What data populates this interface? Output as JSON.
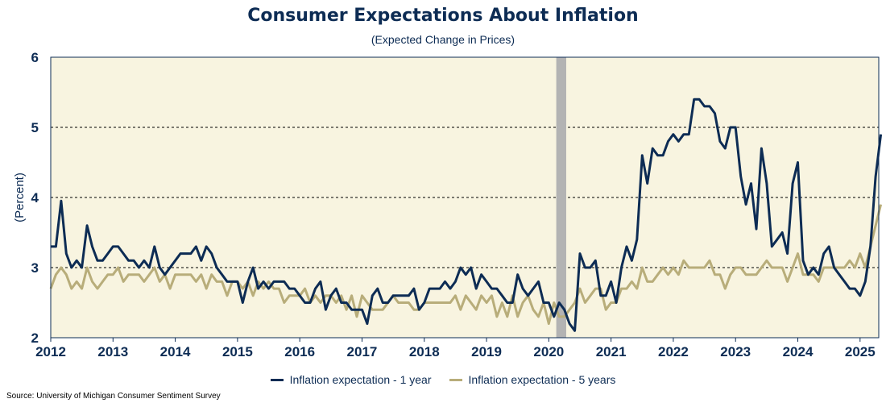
{
  "colors": {
    "plot_bg": "#f8f4e0",
    "series_1yr": "#0d2c54",
    "series_5yr": "#b8ad7a",
    "recession": "#b3b3b3",
    "text": "#0d2c54"
  },
  "chart_data": {
    "type": "line",
    "title": "Consumer Expectations About Inflation",
    "subtitle": "(Expected Change in Prices)",
    "ylabel": "(Percent)",
    "xlabel": "",
    "ylim": [
      2,
      6
    ],
    "yticks": [
      2,
      3,
      4,
      5,
      6
    ],
    "xlim": [
      2012.0,
      2025.3
    ],
    "xticks": [
      2012,
      2013,
      2014,
      2015,
      2016,
      2017,
      2018,
      2019,
      2020,
      2021,
      2022,
      2023,
      2024,
      2025
    ],
    "gridlines": "horizontal dashed at 3, 4, 5",
    "legend_position": "bottom",
    "recession_shading": {
      "start": 2020.12,
      "end": 2020.28
    },
    "start": "2012-01",
    "frequency": "monthly",
    "series": [
      {
        "name": "Inflation expectation - 1 year",
        "values": [
          3.3,
          3.3,
          3.95,
          3.2,
          3.0,
          3.1,
          3.0,
          3.6,
          3.3,
          3.1,
          3.1,
          3.2,
          3.3,
          3.3,
          3.2,
          3.1,
          3.1,
          3.0,
          3.1,
          3.0,
          3.3,
          3.0,
          2.9,
          3.0,
          3.1,
          3.2,
          3.2,
          3.2,
          3.3,
          3.1,
          3.3,
          3.2,
          3.0,
          2.9,
          2.8,
          2.8,
          2.8,
          2.5,
          2.8,
          3.0,
          2.7,
          2.8,
          2.7,
          2.8,
          2.8,
          2.8,
          2.7,
          2.7,
          2.6,
          2.5,
          2.5,
          2.7,
          2.8,
          2.4,
          2.6,
          2.7,
          2.5,
          2.5,
          2.4,
          2.4,
          2.4,
          2.2,
          2.6,
          2.7,
          2.5,
          2.5,
          2.6,
          2.6,
          2.6,
          2.6,
          2.7,
          2.4,
          2.5,
          2.7,
          2.7,
          2.7,
          2.8,
          2.7,
          2.8,
          3.0,
          2.9,
          3.0,
          2.7,
          2.9,
          2.8,
          2.7,
          2.7,
          2.6,
          2.5,
          2.5,
          2.9,
          2.7,
          2.6,
          2.7,
          2.8,
          2.5,
          2.5,
          2.3,
          2.5,
          2.4,
          2.2,
          2.1,
          3.2,
          3.0,
          3.0,
          3.1,
          2.6,
          2.6,
          2.8,
          2.5,
          3.0,
          3.3,
          3.1,
          3.4,
          4.6,
          4.2,
          4.7,
          4.6,
          4.6,
          4.8,
          4.9,
          4.8,
          4.9,
          4.9,
          5.4,
          5.4,
          5.3,
          5.3,
          5.2,
          4.8,
          4.7,
          5.0,
          5.0,
          4.3,
          3.9,
          4.2,
          3.55,
          4.7,
          4.2,
          3.3,
          3.4,
          3.5,
          3.2,
          4.2,
          4.5,
          3.1,
          2.9,
          3.0,
          2.9,
          3.2,
          3.3,
          3.0,
          2.9,
          2.8,
          2.7,
          2.7,
          2.6,
          2.8,
          3.3,
          4.3,
          4.9
        ]
      },
      {
        "name": "Inflation expectation - 5 years",
        "values": [
          2.7,
          2.9,
          3.0,
          2.9,
          2.7,
          2.8,
          2.7,
          3.0,
          2.8,
          2.7,
          2.8,
          2.9,
          2.9,
          3.0,
          2.8,
          2.9,
          2.9,
          2.9,
          2.8,
          2.9,
          3.0,
          2.8,
          2.9,
          2.7,
          2.9,
          2.9,
          2.9,
          2.9,
          2.8,
          2.9,
          2.7,
          2.9,
          2.8,
          2.8,
          2.6,
          2.8,
          2.8,
          2.7,
          2.8,
          2.6,
          2.8,
          2.7,
          2.8,
          2.7,
          2.7,
          2.5,
          2.6,
          2.6,
          2.6,
          2.7,
          2.5,
          2.6,
          2.5,
          2.6,
          2.6,
          2.5,
          2.6,
          2.4,
          2.6,
          2.3,
          2.6,
          2.5,
          2.4,
          2.4,
          2.4,
          2.5,
          2.6,
          2.5,
          2.5,
          2.5,
          2.4,
          2.4,
          2.5,
          2.5,
          2.5,
          2.5,
          2.5,
          2.5,
          2.6,
          2.4,
          2.6,
          2.5,
          2.4,
          2.6,
          2.5,
          2.6,
          2.3,
          2.5,
          2.3,
          2.6,
          2.3,
          2.5,
          2.6,
          2.4,
          2.3,
          2.5,
          2.2,
          2.5,
          2.3,
          2.3,
          2.4,
          2.5,
          2.7,
          2.5,
          2.6,
          2.7,
          2.7,
          2.4,
          2.5,
          2.5,
          2.7,
          2.7,
          2.8,
          2.7,
          3.0,
          2.8,
          2.8,
          2.9,
          3.0,
          2.9,
          3.0,
          2.9,
          3.1,
          3.0,
          3.0,
          3.0,
          3.0,
          3.1,
          2.9,
          2.9,
          2.7,
          2.9,
          3.0,
          3.0,
          2.9,
          2.9,
          2.9,
          3.0,
          3.1,
          3.0,
          3.0,
          3.0,
          2.8,
          3.0,
          3.2,
          2.9,
          2.9,
          2.9,
          2.8,
          3.0,
          3.0,
          3.0,
          3.0,
          3.0,
          3.1,
          3.0,
          3.2,
          3.0,
          3.3,
          3.6,
          3.9
        ]
      }
    ]
  },
  "legend": {
    "item_1yr": "Inflation expectation - 1 year",
    "item_5yr": "Inflation expectation - 5 years"
  },
  "source": "Source: University of Michigan Consumer Sentiment Survey"
}
